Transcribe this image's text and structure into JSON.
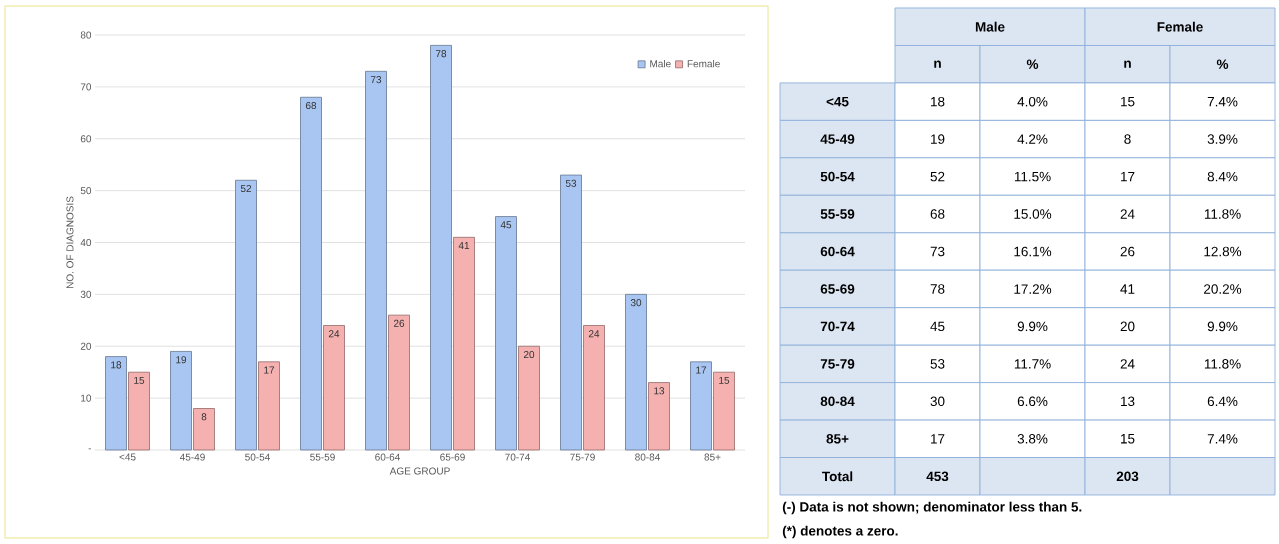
{
  "chart_data": [
    {
      "type": "bar",
      "xlabel": "AGE GROUP",
      "ylabel": "NO. OF DIAGNOSIS",
      "categories": [
        "<45",
        "45-49",
        "50-54",
        "55-59",
        "60-64",
        "65-69",
        "70-74",
        "75-79",
        "80-84",
        "85+"
      ],
      "series": [
        {
          "name": "Male",
          "color": "#a9c6f2",
          "values": [
            18,
            19,
            52,
            68,
            73,
            78,
            45,
            53,
            30,
            17
          ]
        },
        {
          "name": "Female",
          "color": "#f5b0b0",
          "values": [
            15,
            8,
            17,
            24,
            26,
            41,
            20,
            24,
            13,
            15
          ]
        }
      ],
      "ylim": [
        0,
        80
      ],
      "yticks": [
        {
          "value": 0,
          "label": "-"
        },
        10,
        20,
        30,
        40,
        50,
        60,
        70,
        80
      ],
      "grid": "y",
      "legend": "top right",
      "data_labels": true
    },
    {
      "type": "other",
      "categories": [
        "n",
        "%",
        "n",
        "%"
      ],
      "y_categories": [
        "<45",
        "45-49",
        "50-54",
        "55-59",
        "60-64",
        "65-69",
        "70-74",
        "75-79",
        "80-84",
        "85+",
        "Total"
      ],
      "cell_labels": [
        [
          "18",
          "4.0%",
          "15",
          "7.4%"
        ],
        [
          "19",
          "4.2%",
          "8",
          "3.9%"
        ],
        [
          "52",
          "11.5%",
          "17",
          "8.4%"
        ],
        [
          "68",
          "15.0%",
          "24",
          "11.8%"
        ],
        [
          "73",
          "16.1%",
          "26",
          "12.8%"
        ],
        [
          "78",
          "17.2%",
          "41",
          "20.2%"
        ],
        [
          "45",
          "9.9%",
          "20",
          "9.9%"
        ],
        [
          "53",
          "11.7%",
          "24",
          "11.8%"
        ],
        [
          "30",
          "6.6%",
          "13",
          "6.4%"
        ],
        [
          "17",
          "3.8%",
          "15",
          "7.4%"
        ],
        [
          "453",
          null,
          "203",
          null
        ]
      ],
      "annotations": [
        "Male",
        "Female",
        "(-) Data is not shown; denominator less than 5.",
        "(*) denotes a zero."
      ]
    }
  ]
}
